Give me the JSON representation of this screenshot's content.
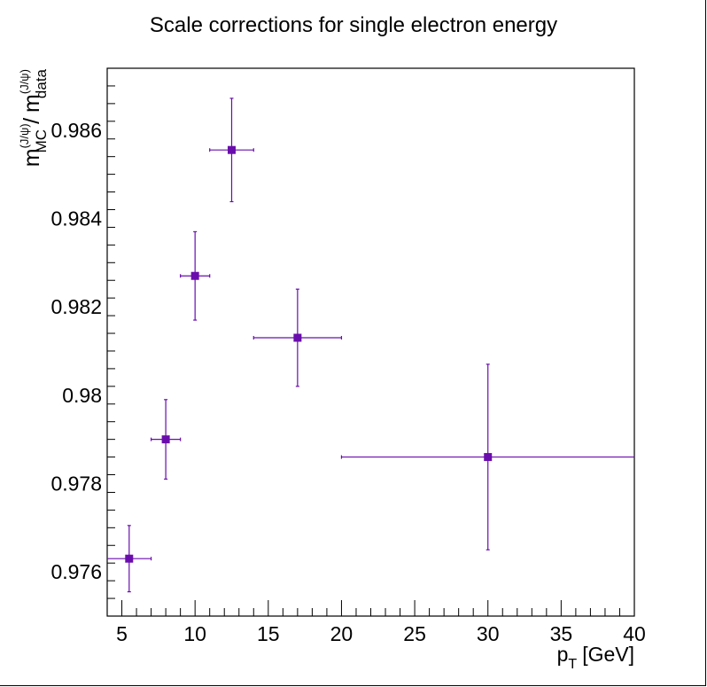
{
  "chart_data": {
    "type": "scatter",
    "title": "Scale corrections for single electron energy",
    "xlabel": {
      "main": "p",
      "sub": "T",
      "unit": "[GeV]"
    },
    "ylabel": {
      "num_base": "m",
      "num_sup": "(J/ψ)",
      "num_sub": "MC",
      "sep": "/",
      "den_base": "m",
      "den_sup": "(J/ψ)",
      "den_sub": "data"
    },
    "xlim": [
      4,
      40
    ],
    "ylim": [
      0.975,
      0.9874
    ],
    "xticks": [
      5,
      10,
      15,
      20,
      25,
      30,
      35,
      40
    ],
    "xtick_labels": [
      "5",
      "10",
      "15",
      "20",
      "25",
      "30",
      "35",
      "40"
    ],
    "yticks": [
      0.976,
      0.978,
      0.98,
      0.982,
      0.984,
      0.986
    ],
    "ytick_labels": [
      "0.976",
      "0.978",
      "0.98",
      "0.982",
      "0.984",
      "0.986"
    ],
    "marker_color": "#6a0dad",
    "grid": false,
    "points": [
      {
        "x": 5.5,
        "xerr_lo": 1.5,
        "xerr_hi": 1.5,
        "y": 0.9763,
        "yerr_lo": 0.00075,
        "yerr_hi": 0.00075
      },
      {
        "x": 8.0,
        "xerr_lo": 1.0,
        "xerr_hi": 1.0,
        "y": 0.979,
        "yerr_lo": 0.0009,
        "yerr_hi": 0.0009
      },
      {
        "x": 10.0,
        "xerr_lo": 1.0,
        "xerr_hi": 1.0,
        "y": 0.9827,
        "yerr_lo": 0.001,
        "yerr_hi": 0.001
      },
      {
        "x": 12.5,
        "xerr_lo": 1.5,
        "xerr_hi": 1.5,
        "y": 0.98555,
        "yerr_lo": 0.00117,
        "yerr_hi": 0.00117
      },
      {
        "x": 17.0,
        "xerr_lo": 3.0,
        "xerr_hi": 3.0,
        "y": 0.9813,
        "yerr_lo": 0.0011,
        "yerr_hi": 0.0011
      },
      {
        "x": 30.0,
        "xerr_lo": 10.0,
        "xerr_hi": 10.0,
        "y": 0.9786,
        "yerr_lo": 0.0021,
        "yerr_hi": 0.0021
      }
    ]
  }
}
